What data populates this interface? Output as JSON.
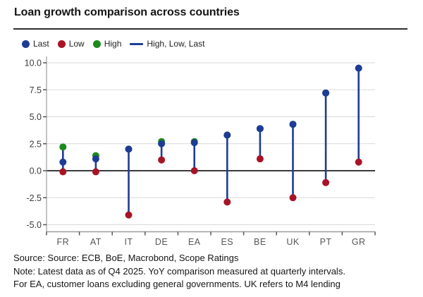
{
  "title": "Loan growth comparison across countries",
  "legend": {
    "items": [
      {
        "label": "Last",
        "marker": "dot",
        "series": "last"
      },
      {
        "label": "Low",
        "marker": "dot",
        "series": "low"
      },
      {
        "label": "High",
        "marker": "dot",
        "series": "high"
      },
      {
        "label": "High, Low, Last",
        "marker": "line",
        "series": "stem"
      }
    ]
  },
  "chart_data": {
    "type": "scatter",
    "subtype": "high-low-last-range-plot",
    "title": "Loan growth comparison across countries",
    "categories": [
      "FR",
      "AT",
      "IT",
      "DE",
      "EA",
      "ES",
      "BE",
      "UK",
      "PT",
      "GR"
    ],
    "series": [
      {
        "name": "Last",
        "values": [
          0.8,
          1.1,
          2.0,
          2.5,
          2.6,
          3.3,
          3.9,
          4.3,
          7.2,
          9.5
        ]
      },
      {
        "name": "Low",
        "values": [
          -0.1,
          -0.1,
          -4.1,
          1.0,
          0.0,
          -2.9,
          1.1,
          -2.5,
          -1.1,
          0.8
        ]
      },
      {
        "name": "High",
        "values": [
          2.2,
          1.4,
          2.0,
          2.7,
          2.7,
          3.3,
          3.9,
          4.3,
          7.2,
          9.5
        ]
      }
    ],
    "ylim": [
      -5,
      10
    ],
    "ytick_values": [
      10,
      7.5,
      5,
      2.5,
      0,
      -2.5,
      -5
    ],
    "ytick_labels": [
      "10.0",
      "7.5",
      "5.0",
      "2.5",
      "0.0",
      "-2.5",
      "-5.0"
    ],
    "grid": true,
    "zero_line": true,
    "legend_position": "top-left",
    "colors": {
      "last": "#1e3c96",
      "low": "#a81326",
      "high": "#1d8a1d",
      "stem": "#1e3c96",
      "grid": "#d9d9d9",
      "zero": "#3a3a3a",
      "axis": "#9c9c9c",
      "tick": "#555555",
      "axis_label": "#3c3c3c"
    }
  },
  "footer": {
    "source_line": "Source: Source: ECB, BoE, Macrobond, Scope Ratings",
    "note_line_1": "Note: Latest data as of Q4 2025. YoY comparison measured at quarterly intervals.",
    "note_line_2": "For EA, customer loans excluding general governments. UK refers to M4 lending"
  }
}
